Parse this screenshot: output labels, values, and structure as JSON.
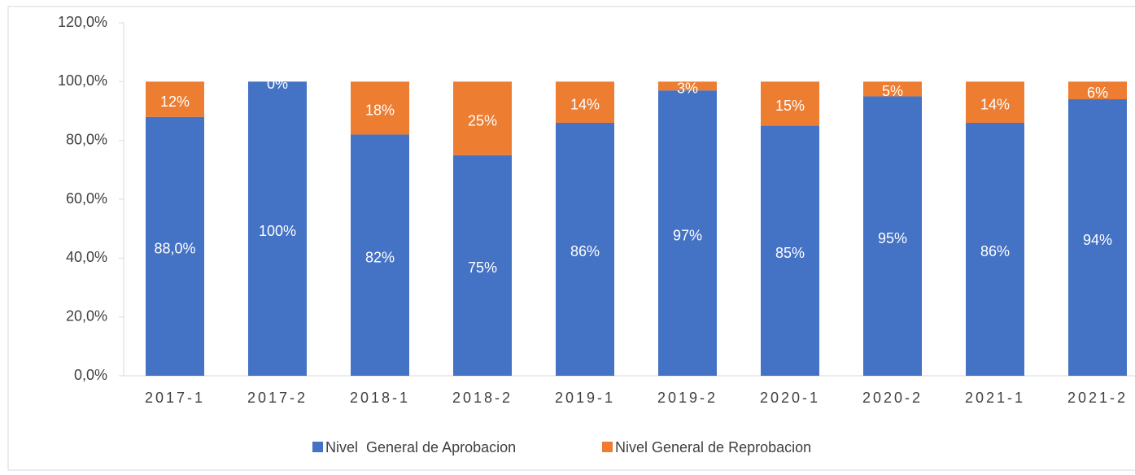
{
  "chart_data": {
    "type": "stacked_bar",
    "categories": [
      "2017-1",
      "2017-2",
      "2018-1",
      "2018-2",
      "2019-1",
      "2019-2",
      "2020-1",
      "2020-2",
      "2021-1",
      "2021-2"
    ],
    "series": [
      {
        "name": "Nivel  General de Aprobacion",
        "color": "#4472c4",
        "values": [
          88.0,
          100,
          82,
          75,
          86,
          97,
          85,
          95,
          86,
          94
        ],
        "value_labels": [
          "88,0%",
          "100%",
          "82%",
          "75%",
          "86%",
          "97%",
          "85%",
          "95%",
          "86%",
          "94%"
        ]
      },
      {
        "name": "Nivel General de Reprobacion",
        "color": "#ed7d31",
        "values": [
          12,
          0,
          18,
          25,
          14,
          3,
          15,
          5,
          14,
          6
        ],
        "value_labels": [
          "12%",
          "0%",
          "18%",
          "25%",
          "14%",
          "3%",
          "15%",
          "5%",
          "14%",
          "6%"
        ]
      }
    ],
    "ylim": [
      0,
      120
    ],
    "yticks": [
      {
        "value": 0,
        "label": "0,0%"
      },
      {
        "value": 20,
        "label": "20,0%"
      },
      {
        "value": 40,
        "label": "40,0%"
      },
      {
        "value": 60,
        "label": "60,0%"
      },
      {
        "value": 80,
        "label": "80,0%"
      },
      {
        "value": 100,
        "label": "100,0%"
      },
      {
        "value": 120,
        "label": "120,0%"
      }
    ],
    "legend": "bottom"
  }
}
